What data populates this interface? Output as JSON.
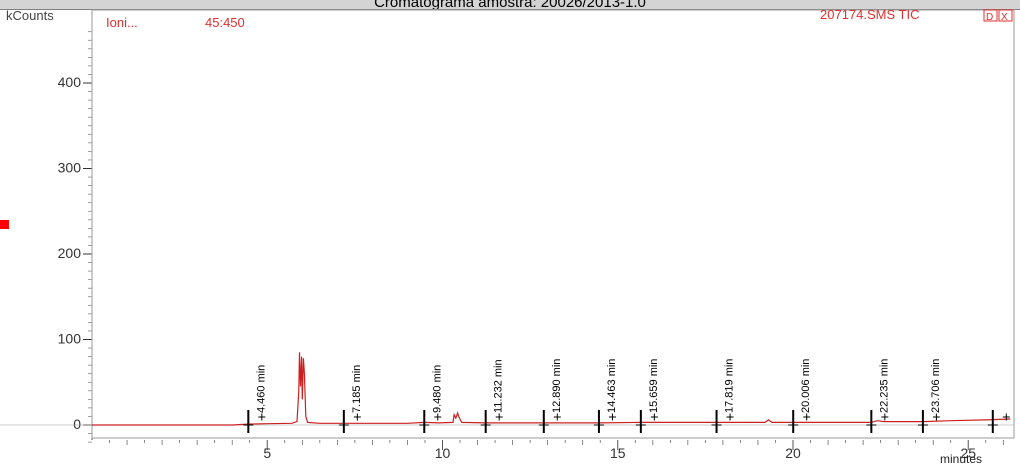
{
  "window_title": "Cromatograma amostra: 20026/2013-1.0",
  "chart_data": {
    "type": "line",
    "y_unit": "kCounts",
    "x_unit": "minutes",
    "ion_label": "Ioni...",
    "ion_range": "45:450",
    "trace_label": "207174.SMS TIC",
    "window_buttons": [
      "D",
      "X"
    ],
    "xlim": [
      0,
      26.4
    ],
    "ylim": [
      -25,
      465
    ],
    "x_ticks": [
      5,
      10,
      15,
      20,
      25
    ],
    "y_ticks": [
      0,
      100,
      200,
      300,
      400
    ],
    "colors": {
      "trace": "#cc2020",
      "accent_red": "#e03030",
      "marker": "#ff0000"
    },
    "series": [
      {
        "x": [
          0,
          4.0,
          4.46,
          5.0,
          5.7,
          5.85,
          5.9,
          5.92,
          5.95,
          5.98,
          6.0,
          6.03,
          6.06,
          6.1,
          6.15,
          6.5,
          7.185,
          8.0,
          9.0,
          9.48,
          9.9,
          10.3,
          10.33,
          10.38,
          10.43,
          10.47,
          10.55,
          11.232,
          12.0,
          12.89,
          14.463,
          15.659,
          16.5,
          17.819,
          18.5,
          19.2,
          19.3,
          19.4,
          20.006,
          21.0,
          22.235,
          22.4,
          22.6,
          23.706,
          24.5,
          25.5,
          26.2
        ],
        "y": [
          0,
          0,
          1,
          1.5,
          2,
          4,
          40,
          85,
          45,
          80,
          30,
          78,
          60,
          10,
          3,
          2,
          2,
          2,
          2,
          3,
          2.5,
          3,
          12,
          8,
          14,
          9,
          3,
          2.5,
          2.5,
          2.5,
          2.5,
          3,
          3,
          3,
          3,
          3,
          6,
          3,
          3,
          3,
          3,
          5,
          4,
          4,
          5,
          6,
          7
        ]
      }
    ],
    "peaks": [
      {
        "rt": 4.46,
        "label": "4.460 min"
      },
      {
        "rt": 7.185,
        "label": "7.185 min"
      },
      {
        "rt": 9.48,
        "label": "9.480 min"
      },
      {
        "rt": 11.232,
        "label": "11.232 min"
      },
      {
        "rt": 12.89,
        "label": "12.890 min"
      },
      {
        "rt": 14.463,
        "label": "14.463 min"
      },
      {
        "rt": 15.659,
        "label": "15.659 min"
      },
      {
        "rt": 17.819,
        "label": "17.819 min"
      },
      {
        "rt": 20.006,
        "label": "20.006 min"
      },
      {
        "rt": 22.235,
        "label": "22.235 min"
      },
      {
        "rt": 23.706,
        "label": "23.706 min"
      },
      {
        "rt": 25.7,
        "label": ""
      }
    ]
  }
}
